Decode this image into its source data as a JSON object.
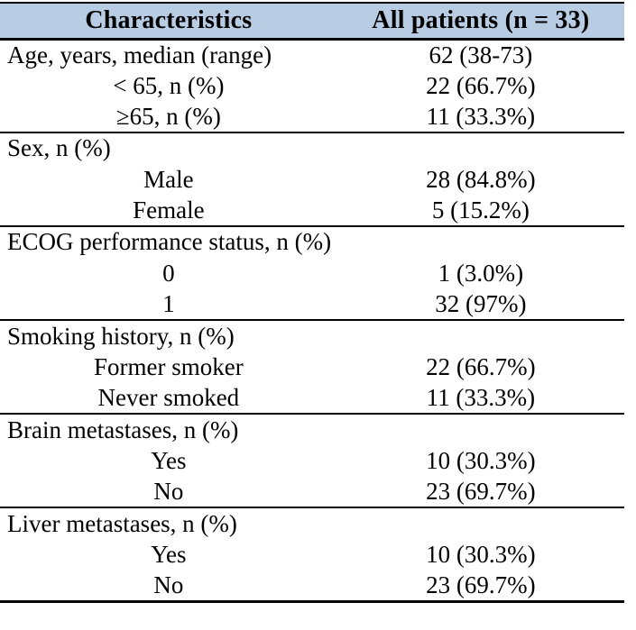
{
  "colors": {
    "header_bg": "#b8cce4",
    "border": "#000000",
    "text": "#000000",
    "background": "#ffffff"
  },
  "table": {
    "header": {
      "col1": "Characteristics",
      "col2": "All patients (n = 33)"
    },
    "sections": [
      {
        "rows": [
          {
            "label": "Age, years, median (range)",
            "value": "62 (38-73)",
            "indent": false
          },
          {
            "label": "< 65, n (%)",
            "value": "22 (66.7%)",
            "indent": true
          },
          {
            "label": "≥65, n (%)",
            "value": "11 (33.3%)",
            "indent": true
          }
        ]
      },
      {
        "rows": [
          {
            "label": "Sex, n (%)",
            "value": "",
            "indent": false
          },
          {
            "label": "Male",
            "value": "28 (84.8%)",
            "indent": true
          },
          {
            "label": "Female",
            "value": "5 (15.2%)",
            "indent": true
          }
        ]
      },
      {
        "rows": [
          {
            "label": "ECOG performance status, n (%)",
            "value": "",
            "indent": false
          },
          {
            "label": "0",
            "value": "1 (3.0%)",
            "indent": true
          },
          {
            "label": "1",
            "value": "32 (97%)",
            "indent": true
          }
        ]
      },
      {
        "rows": [
          {
            "label": "Smoking history, n (%)",
            "value": "",
            "indent": false
          },
          {
            "label": "Former smoker",
            "value": "22 (66.7%)",
            "indent": true
          },
          {
            "label": "Never smoked",
            "value": "11 (33.3%)",
            "indent": true
          }
        ]
      },
      {
        "rows": [
          {
            "label": "Brain metastases, n (%)",
            "value": "",
            "indent": false
          },
          {
            "label": "Yes",
            "value": "10 (30.3%)",
            "indent": true
          },
          {
            "label": "No",
            "value": "23 (69.7%)",
            "indent": true
          }
        ]
      },
      {
        "rows": [
          {
            "label": "Liver metastases, n (%)",
            "value": "",
            "indent": false
          },
          {
            "label": "Yes",
            "value": "10 (30.3%)",
            "indent": true
          },
          {
            "label": "No",
            "value": "23 (69.7%)",
            "indent": true
          }
        ]
      }
    ]
  }
}
